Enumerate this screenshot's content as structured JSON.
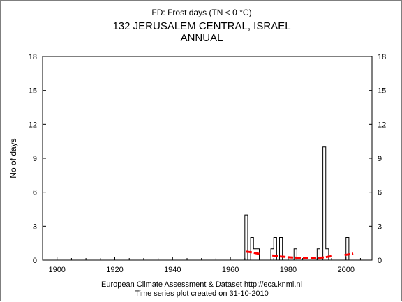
{
  "chart_data": {
    "type": "line",
    "subtitle": "FD: Frost days (TN < 0 °C)",
    "title_line1": "132 JERUSALEM CENTRAL, ISRAEL",
    "title_line2": "ANNUAL",
    "ylabel": "No of days",
    "xlabel": "",
    "xlim": [
      1895,
      2009
    ],
    "ylim": [
      0,
      18
    ],
    "x_ticks": [
      1900,
      1920,
      1940,
      1960,
      1980,
      2000
    ],
    "y_ticks": [
      0,
      3,
      6,
      9,
      12,
      15,
      18
    ],
    "grid": false,
    "footer_line1": "European Climate Assessment & Dataset  http://eca.knmi.nl",
    "footer_line2": "Time series plot created on 31-10-2010",
    "series": [
      {
        "kind": "step",
        "color": "#000000",
        "points": [
          {
            "x": 1965,
            "y": 4
          },
          {
            "x": 1966,
            "y": 0
          },
          {
            "x": 1967,
            "y": 2
          },
          {
            "x": 1968,
            "y": 1
          },
          {
            "x": 1969,
            "y": 1
          },
          {
            "x": 1970,
            "y": 0
          },
          {
            "x": 1971,
            "y": 0
          },
          {
            "x": 1972,
            "y": 0
          },
          {
            "x": 1973,
            "y": 0
          },
          {
            "x": 1974,
            "y": 1
          },
          {
            "x": 1975,
            "y": 2
          },
          {
            "x": 1976,
            "y": 0
          },
          {
            "x": 1977,
            "y": 2
          },
          {
            "x": 1978,
            "y": 0
          },
          {
            "x": 1979,
            "y": 0
          },
          {
            "x": 1980,
            "y": 0
          },
          {
            "x": 1981,
            "y": 0
          },
          {
            "x": 1982,
            "y": 1
          },
          {
            "x": 1983,
            "y": 0
          },
          {
            "x": 1984,
            "y": 0
          },
          {
            "x": 1985,
            "y": 0
          },
          {
            "x": 1986,
            "y": 0
          },
          {
            "x": 1987,
            "y": 0
          },
          {
            "x": 1988,
            "y": 0
          },
          {
            "x": 1989,
            "y": 0
          },
          {
            "x": 1990,
            "y": 1
          },
          {
            "x": 1991,
            "y": 0
          },
          {
            "x": 1992,
            "y": 10
          },
          {
            "x": 1993,
            "y": 1
          },
          {
            "x": 1994,
            "y": 0
          },
          {
            "x": 2000,
            "y": 2
          },
          {
            "x": 2001,
            "y": 0
          }
        ]
      },
      {
        "kind": "smooth",
        "color": "#ff0000",
        "points": [
          {
            "x": 1965,
            "y": 0.75
          },
          {
            "x": 1966,
            "y": 0.72
          },
          {
            "x": 1967,
            "y": 0.68
          },
          {
            "x": 1968,
            "y": 0.63
          },
          {
            "x": 1969,
            "y": 0.58
          },
          {
            "x": 1970,
            "y": 0.52
          },
          {
            "x": 1974,
            "y": 0.42
          },
          {
            "x": 1975,
            "y": 0.38
          },
          {
            "x": 1976,
            "y": 0.35
          },
          {
            "x": 1977,
            "y": 0.32
          },
          {
            "x": 1978,
            "y": 0.3
          },
          {
            "x": 1979,
            "y": 0.27
          },
          {
            "x": 1980,
            "y": 0.25
          },
          {
            "x": 1981,
            "y": 0.23
          },
          {
            "x": 1982,
            "y": 0.22
          },
          {
            "x": 1983,
            "y": 0.2
          },
          {
            "x": 1984,
            "y": 0.19
          },
          {
            "x": 1985,
            "y": 0.18
          },
          {
            "x": 1986,
            "y": 0.18
          },
          {
            "x": 1987,
            "y": 0.18
          },
          {
            "x": 1988,
            "y": 0.18
          },
          {
            "x": 1989,
            "y": 0.19
          },
          {
            "x": 1990,
            "y": 0.2
          },
          {
            "x": 1991,
            "y": 0.22
          },
          {
            "x": 1992,
            "y": 0.25
          },
          {
            "x": 1993,
            "y": 0.29
          },
          {
            "x": 1994,
            "y": 0.33
          },
          {
            "x": 1995,
            "y": 0.37
          },
          {
            "x": 1999,
            "y": 0.45
          },
          {
            "x": 2000,
            "y": 0.49
          },
          {
            "x": 2001,
            "y": 0.53
          },
          {
            "x": 2002,
            "y": 0.58
          }
        ]
      }
    ]
  }
}
